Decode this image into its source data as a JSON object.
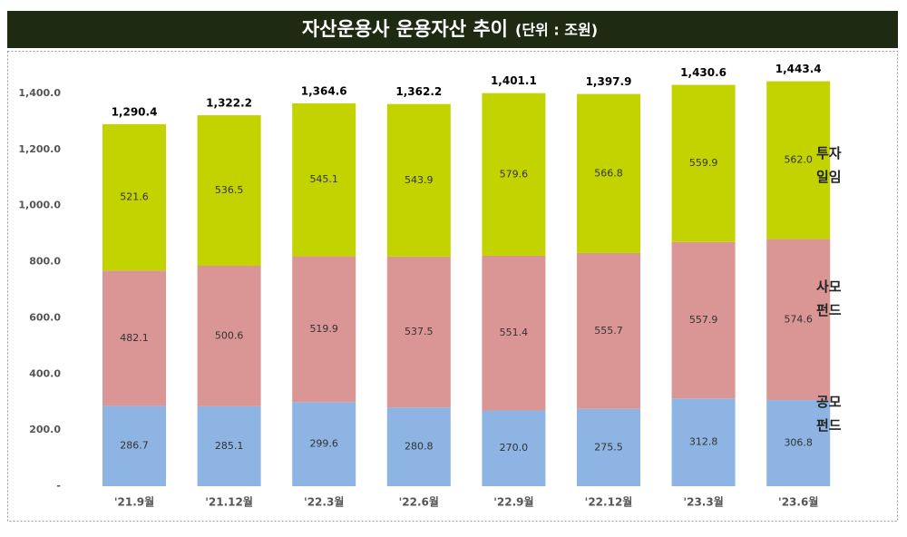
{
  "chart_data": {
    "type": "stacked-bar",
    "title": "자산운용사 운용자산 추이",
    "subtitle": "(단위 : 조원)",
    "categories": [
      "'21.9월",
      "'21.12월",
      "'22.3월",
      "'22.6월",
      "'22.9월",
      "'22.12월",
      "'23.3월",
      "'23.6월"
    ],
    "series": [
      {
        "name": "공모 펀드",
        "color": "#8db4e2",
        "values": [
          286.7,
          285.1,
          299.6,
          280.8,
          270.0,
          275.5,
          312.8,
          306.8
        ],
        "value_labels": [
          "286.7",
          "285.1",
          "299.6",
          "280.8",
          "270.0",
          "275.5",
          "312.8",
          "306.8"
        ]
      },
      {
        "name": "사모 펀드",
        "color": "#da9694",
        "values": [
          482.1,
          500.6,
          519.9,
          537.5,
          551.4,
          555.7,
          557.9,
          574.6
        ],
        "value_labels": [
          "482.1",
          "500.6",
          "519.9",
          "537.5",
          "551.4",
          "555.7",
          "557.9",
          "574.6"
        ]
      },
      {
        "name": "투자 일임",
        "color": "#c3d300",
        "values": [
          521.6,
          536.5,
          545.1,
          543.9,
          579.6,
          566.8,
          559.9,
          562.0
        ],
        "value_labels": [
          "521.6",
          "536.5",
          "545.1",
          "543.9",
          "579.6",
          "566.8",
          "559.9",
          "562.0"
        ]
      }
    ],
    "totals": {
      "values": [
        1290.4,
        1322.2,
        1364.6,
        1362.2,
        1401.1,
        1397.9,
        1430.6,
        1443.4
      ],
      "value_labels": [
        "1,290.4",
        "1,322.2",
        "1,364.6",
        "1,362.2",
        "1,401.1",
        "1,397.9",
        "1,430.6",
        "1,443.4"
      ]
    },
    "ylim": [
      0,
      1400
    ],
    "yticks": [
      {
        "value": 0,
        "label": "-"
      },
      {
        "value": 200,
        "label": "200.0"
      },
      {
        "value": 400,
        "label": "400.0"
      },
      {
        "value": 600,
        "label": "600.0"
      },
      {
        "value": 800,
        "label": "800.0"
      },
      {
        "value": 1000,
        "label": "1,000.0"
      },
      {
        "value": 1200,
        "label": "1,200.0"
      },
      {
        "value": 1400,
        "label": "1,400.0"
      }
    ],
    "grid": false
  }
}
